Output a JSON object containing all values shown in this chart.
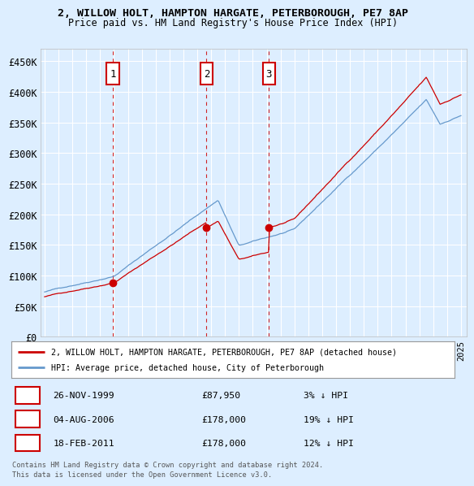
{
  "title1": "2, WILLOW HOLT, HAMPTON HARGATE, PETERBOROUGH, PE7 8AP",
  "title2": "Price paid vs. HM Land Registry's House Price Index (HPI)",
  "ylim": [
    0,
    470000
  ],
  "yticks": [
    0,
    50000,
    100000,
    150000,
    200000,
    250000,
    300000,
    350000,
    400000,
    450000
  ],
  "ytick_labels": [
    "£0",
    "£50K",
    "£100K",
    "£150K",
    "£200K",
    "£250K",
    "£300K",
    "£350K",
    "£400K",
    "£450K"
  ],
  "sale_prices": [
    87950,
    178000,
    178000
  ],
  "sale_labels": [
    "1",
    "2",
    "3"
  ],
  "sale_label_info": [
    {
      "label": "1",
      "date": "26-NOV-1999",
      "price": "£87,950",
      "hpi": "3% ↓ HPI"
    },
    {
      "label": "2",
      "date": "04-AUG-2006",
      "price": "£178,000",
      "hpi": "19% ↓ HPI"
    },
    {
      "label": "3",
      "date": "18-FEB-2011",
      "price": "£178,000",
      "hpi": "12% ↓ HPI"
    }
  ],
  "legend_line1": "2, WILLOW HOLT, HAMPTON HARGATE, PETERBOROUGH, PE7 8AP (detached house)",
  "legend_line2": "HPI: Average price, detached house, City of Peterborough",
  "footer1": "Contains HM Land Registry data © Crown copyright and database right 2024.",
  "footer2": "This data is licensed under the Open Government Licence v3.0.",
  "sale_color": "#cc0000",
  "hpi_color": "#6699cc",
  "bg_color": "#ddeeff",
  "plot_bg": "#ddeeff",
  "grid_color": "#ffffff",
  "dashed_color": "#cc0000",
  "xstart": 1995,
  "xend": 2025
}
